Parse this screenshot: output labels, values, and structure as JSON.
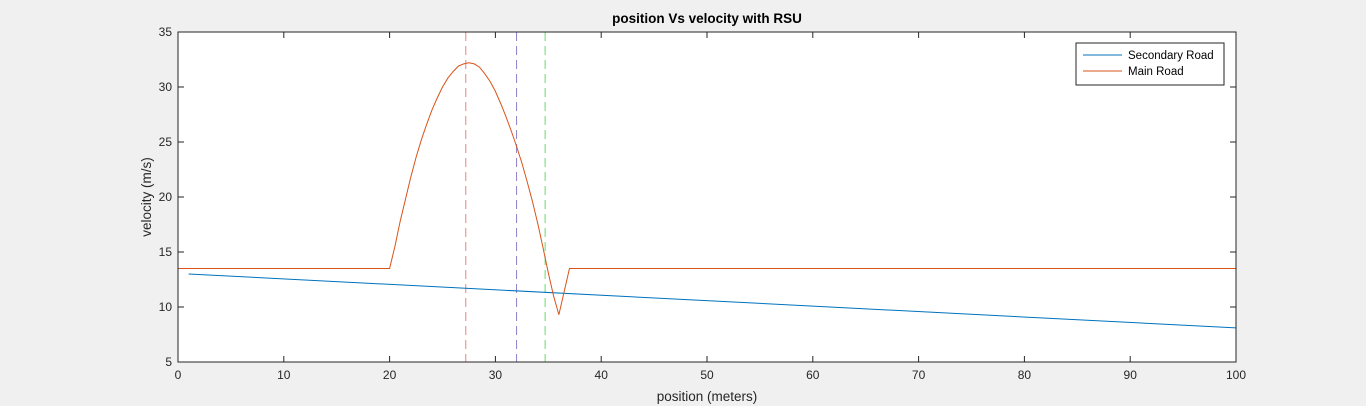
{
  "chart_data": {
    "type": "line",
    "title": "position Vs velocity with RSU",
    "xlabel": "position (meters)",
    "ylabel": "velocity (m/s)",
    "xlim": [
      0,
      100
    ],
    "ylim": [
      5,
      35
    ],
    "xticks": [
      0,
      10,
      20,
      30,
      40,
      50,
      60,
      70,
      80,
      90,
      100
    ],
    "yticks": [
      5,
      10,
      15,
      20,
      25,
      30,
      35
    ],
    "grid": false,
    "legend_position": "top-right",
    "series": [
      {
        "name": "Secondary Road",
        "color": "#0072bd",
        "x": [
          1,
          100
        ],
        "y": [
          13.0,
          8.1
        ]
      },
      {
        "name": "Main Road",
        "color": "#d95319",
        "x": [
          0,
          20,
          20.5,
          21,
          21.5,
          22,
          22.5,
          23,
          23.5,
          24,
          24.5,
          25,
          25.5,
          26,
          26.5,
          27,
          27.5,
          28,
          28.5,
          29,
          29.5,
          30,
          30.5,
          31,
          31.5,
          32,
          32.5,
          33,
          33.5,
          34,
          34.5,
          35,
          35.5,
          36,
          36.5,
          37,
          100
        ],
        "y": [
          13.5,
          13.5,
          15.5,
          17.8,
          19.8,
          21.8,
          23.6,
          25.2,
          26.6,
          27.9,
          29.0,
          30.0,
          30.8,
          31.4,
          31.9,
          32.1,
          32.2,
          32.1,
          31.8,
          31.2,
          30.5,
          29.6,
          28.5,
          27.3,
          26.0,
          24.6,
          23.1,
          21.4,
          19.6,
          17.6,
          15.4,
          13.1,
          11.0,
          9.3,
          11.4,
          13.5,
          13.5
        ]
      }
    ],
    "vertical_lines": [
      {
        "x": 27.2,
        "color": "#f08080",
        "style": "dashed"
      },
      {
        "x": 32.0,
        "color": "#9080c8",
        "style": "dashed"
      },
      {
        "x": 34.7,
        "color": "#66dd66",
        "style": "dashed"
      }
    ]
  }
}
